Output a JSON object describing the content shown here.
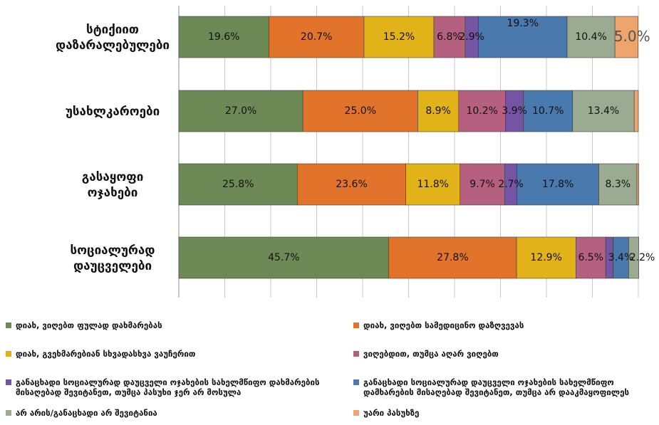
{
  "chart_data": {
    "type": "bar",
    "orientation": "horizontal",
    "stacked": true,
    "categories": [
      "სტიქიით დაზარალებულები",
      "უსახლკაროები",
      "გასაყოფი ოჯახები",
      "სოციალურად დაუცველები"
    ],
    "series": [
      {
        "name": "დიახ, ვიღებთ ფულად დახმარებას",
        "color": "#6d8a56",
        "values": [
          19.6,
          27.0,
          25.8,
          45.7
        ]
      },
      {
        "name": "დიახ, ვიღებთ სამედიცინო დაზღვევას",
        "color": "#e1742a",
        "values": [
          20.7,
          25.0,
          23.6,
          27.8
        ]
      },
      {
        "name": "დიახ, გვეხმარებიან სხვადასხვა ვაუჩერით",
        "color": "#e2b318",
        "values": [
          15.2,
          8.9,
          11.8,
          12.9
        ]
      },
      {
        "name": "ვიღებდით, თუმცა აღარ ვიღებთ",
        "color": "#b5607e",
        "values": [
          6.8,
          10.2,
          9.7,
          6.5
        ]
      },
      {
        "name": "განაცხადი სოციალურად დაუცველი ოჯახების სახელმწიფო დახმარების მისაღებად შევიტანეთ, თუმცა პასუხი ჯერ არ მოსულა",
        "color": "#7454a3",
        "values": [
          2.9,
          3.9,
          2.7,
          1.6
        ]
      },
      {
        "name": "განაცხადი სოციალურად დაუცველი ოჯახების სახელმწიფო დამხარების მისაღებად შევიტანეთ, თუმცა არ დააკმაყოფილეს",
        "color": "#4a79ad",
        "values": [
          19.3,
          10.7,
          17.8,
          3.4
        ]
      },
      {
        "name": "არ არის/განაცხადი არ შევიტანია",
        "color": "#9aab91",
        "values": [
          10.4,
          13.4,
          8.3,
          2.2
        ]
      },
      {
        "name": "უარი პასუხზე",
        "color": "#eea46d",
        "values": [
          5.0,
          0.9,
          0.4,
          0.0
        ]
      }
    ],
    "data_labels": [
      [
        "19.6%",
        "20.7%",
        "15.2%",
        "6.8%",
        "2.9%",
        "19.3%",
        "10.4%",
        "5.0%"
      ],
      [
        "27.0%",
        "25.0%",
        "8.9%",
        "10.2%",
        "3.9%",
        "10.7%",
        "13.4%",
        ""
      ],
      [
        "25.8%",
        "23.6%",
        "11.8%",
        "9.7%",
        "2.7%",
        "17.8%",
        "8.3%",
        ""
      ],
      [
        "45.7%",
        "27.8%",
        "12.9%",
        "6.5%",
        "",
        "3.4%",
        "2.2%",
        ""
      ]
    ],
    "xlim": [
      0,
      100
    ],
    "grid": "vertical",
    "legend_position": "bottom"
  }
}
